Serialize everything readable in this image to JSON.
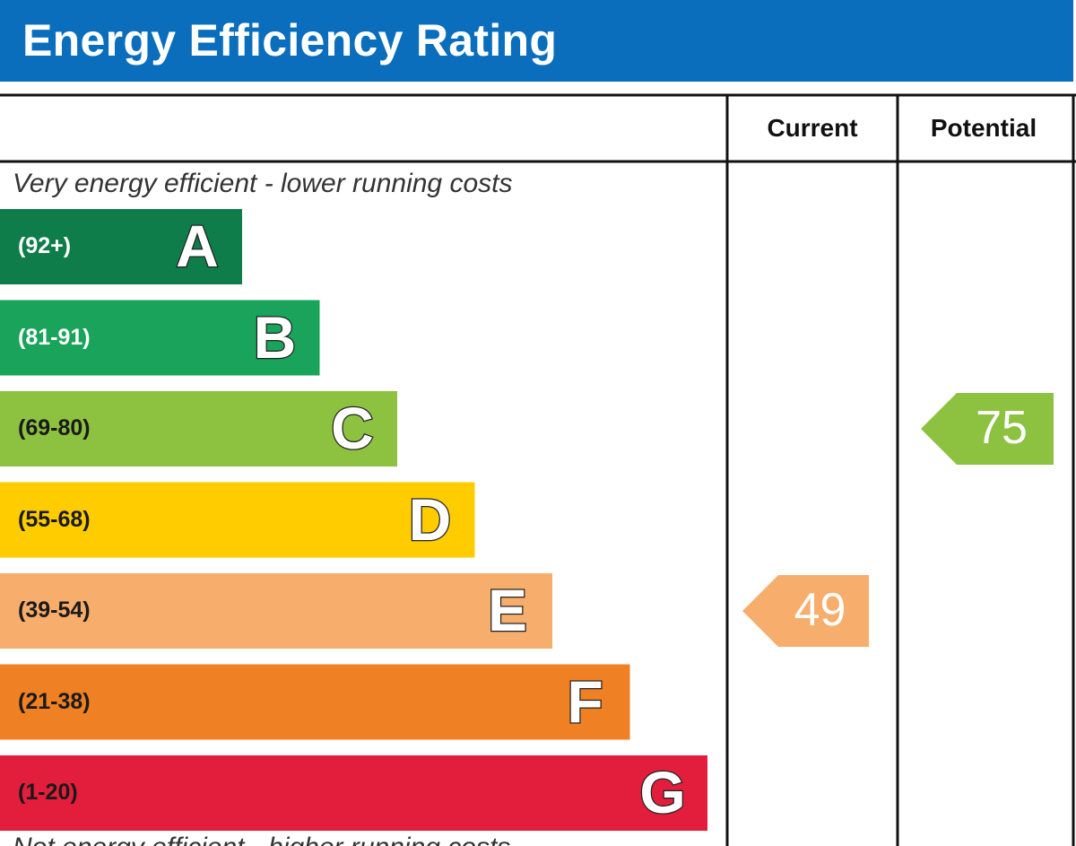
{
  "chart_data": {
    "type": "bar",
    "title": "Energy Efficiency Rating",
    "columns": {
      "current": "Current",
      "potential": "Potential"
    },
    "top_caption": "Very energy efficient - lower running costs",
    "bottom_caption": "Not energy efficient - higher running costs",
    "bands": [
      {
        "letter": "A",
        "range": "(92+)",
        "min": 92,
        "max": 100,
        "color": "#0f7d4a",
        "text_color": "#ffffff"
      },
      {
        "letter": "B",
        "range": "(81-91)",
        "min": 81,
        "max": 91,
        "color": "#1aa35a",
        "text_color": "#ffffff"
      },
      {
        "letter": "C",
        "range": "(69-80)",
        "min": 69,
        "max": 80,
        "color": "#8cc240",
        "text_color": "#1a1a1a"
      },
      {
        "letter": "D",
        "range": "(55-68)",
        "min": 55,
        "max": 68,
        "color": "#ffcc00",
        "text_color": "#1a1a1a"
      },
      {
        "letter": "E",
        "range": "(39-54)",
        "min": 39,
        "max": 54,
        "color": "#f7ad6b",
        "text_color": "#1a1a1a"
      },
      {
        "letter": "F",
        "range": "(21-38)",
        "min": 21,
        "max": 38,
        "color": "#ef8023",
        "text_color": "#1a1a1a"
      },
      {
        "letter": "G",
        "range": "(1-20)",
        "min": 1,
        "max": 20,
        "color": "#e31d3c",
        "text_color": "#1a1a1a"
      }
    ],
    "current": {
      "value": 49,
      "band": "E",
      "color": "#f7ad6b"
    },
    "potential": {
      "value": 75,
      "band": "C",
      "color": "#8cc240"
    },
    "header_color": "#0a6ebd",
    "line_color": "#111111"
  }
}
